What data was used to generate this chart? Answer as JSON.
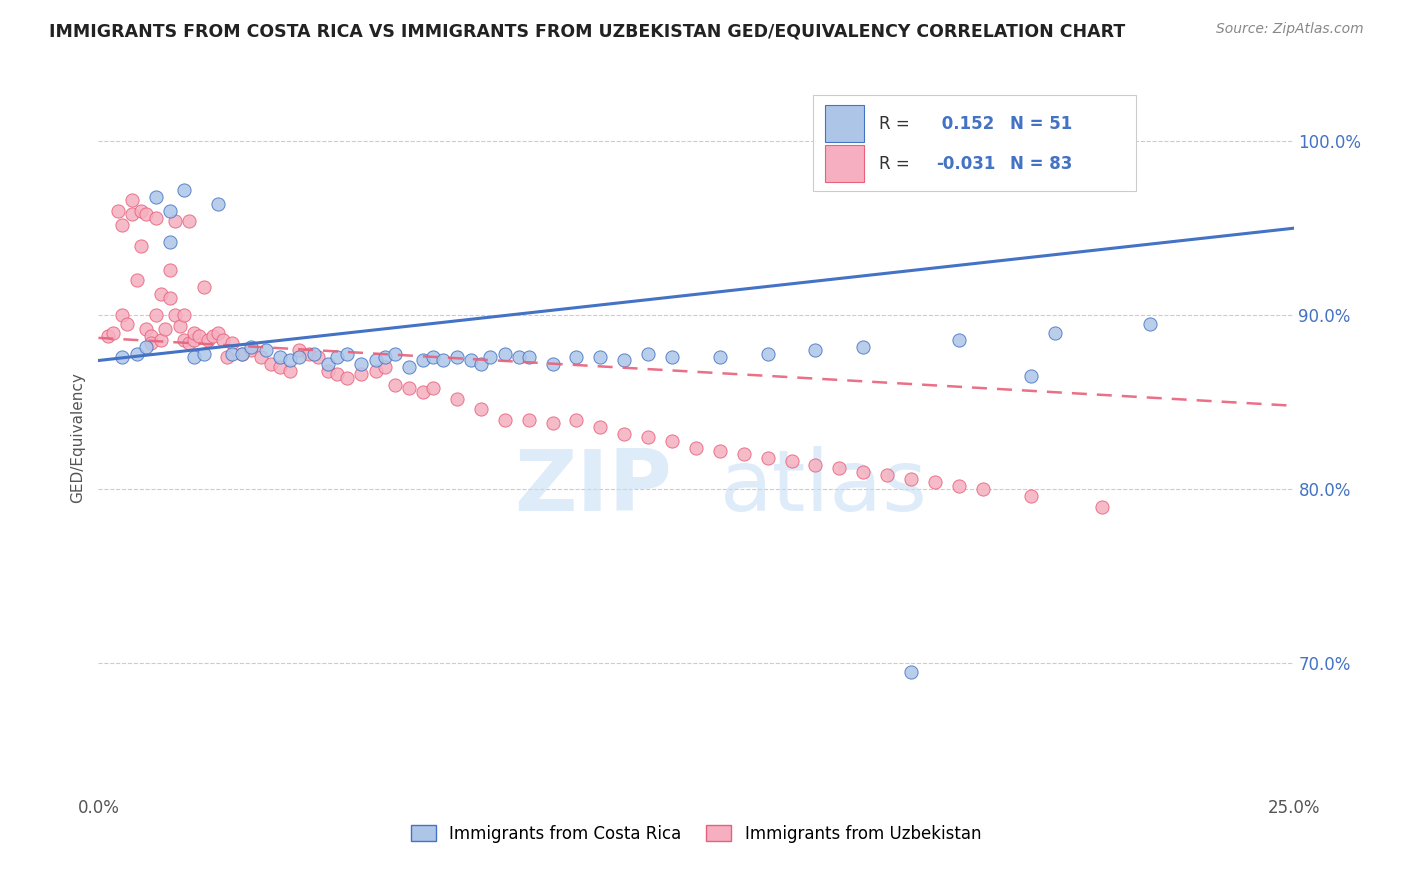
{
  "title": "IMMIGRANTS FROM COSTA RICA VS IMMIGRANTS FROM UZBEKISTAN GED/EQUIVALENCY CORRELATION CHART",
  "source": "Source: ZipAtlas.com",
  "ylabel": "GED/Equivalency",
  "xlim": [
    0.0,
    0.25
  ],
  "ylim": [
    0.625,
    1.035
  ],
  "legend1_label": "Immigrants from Costa Rica",
  "legend2_label": "Immigrants from Uzbekistan",
  "r1": 0.152,
  "n1": 51,
  "r2": -0.031,
  "n2": 83,
  "color_blue": "#adc6e8",
  "color_pink": "#f5afc0",
  "color_blue_line": "#4472c4",
  "color_pink_line": "#e8607a",
  "watermark": "ZIPatlas",
  "blue_scatter_x": [
    0.005,
    0.008,
    0.01,
    0.012,
    0.015,
    0.015,
    0.018,
    0.02,
    0.022,
    0.025,
    0.028,
    0.03,
    0.032,
    0.035,
    0.038,
    0.04,
    0.042,
    0.045,
    0.048,
    0.05,
    0.052,
    0.055,
    0.058,
    0.06,
    0.062,
    0.065,
    0.068,
    0.07,
    0.072,
    0.075,
    0.078,
    0.08,
    0.082,
    0.085,
    0.088,
    0.09,
    0.095,
    0.1,
    0.105,
    0.11,
    0.115,
    0.12,
    0.13,
    0.14,
    0.15,
    0.16,
    0.18,
    0.2,
    0.22,
    0.195,
    0.17
  ],
  "blue_scatter_y": [
    0.876,
    0.878,
    0.882,
    0.968,
    0.96,
    0.942,
    0.972,
    0.876,
    0.878,
    0.964,
    0.878,
    0.878,
    0.882,
    0.88,
    0.876,
    0.874,
    0.876,
    0.878,
    0.872,
    0.876,
    0.878,
    0.872,
    0.874,
    0.876,
    0.878,
    0.87,
    0.874,
    0.876,
    0.874,
    0.876,
    0.874,
    0.872,
    0.876,
    0.878,
    0.876,
    0.876,
    0.872,
    0.876,
    0.876,
    0.874,
    0.878,
    0.876,
    0.876,
    0.878,
    0.88,
    0.882,
    0.886,
    0.89,
    0.895,
    0.865,
    0.695
  ],
  "pink_scatter_x": [
    0.002,
    0.003,
    0.004,
    0.005,
    0.005,
    0.006,
    0.007,
    0.007,
    0.008,
    0.009,
    0.009,
    0.01,
    0.01,
    0.011,
    0.011,
    0.012,
    0.012,
    0.013,
    0.013,
    0.014,
    0.015,
    0.015,
    0.016,
    0.016,
    0.017,
    0.018,
    0.018,
    0.019,
    0.019,
    0.02,
    0.02,
    0.021,
    0.022,
    0.023,
    0.024,
    0.025,
    0.026,
    0.027,
    0.028,
    0.03,
    0.032,
    0.034,
    0.036,
    0.038,
    0.04,
    0.042,
    0.044,
    0.046,
    0.048,
    0.05,
    0.052,
    0.055,
    0.058,
    0.06,
    0.062,
    0.065,
    0.068,
    0.07,
    0.075,
    0.08,
    0.085,
    0.09,
    0.095,
    0.1,
    0.105,
    0.11,
    0.115,
    0.12,
    0.125,
    0.13,
    0.135,
    0.14,
    0.145,
    0.15,
    0.155,
    0.16,
    0.165,
    0.17,
    0.175,
    0.18,
    0.185,
    0.195,
    0.21
  ],
  "pink_scatter_y": [
    0.888,
    0.89,
    0.96,
    0.952,
    0.9,
    0.895,
    0.966,
    0.958,
    0.92,
    0.94,
    0.96,
    0.958,
    0.892,
    0.888,
    0.884,
    0.956,
    0.9,
    0.912,
    0.886,
    0.892,
    0.926,
    0.91,
    0.9,
    0.954,
    0.894,
    0.886,
    0.9,
    0.954,
    0.884,
    0.886,
    0.89,
    0.888,
    0.916,
    0.886,
    0.888,
    0.89,
    0.886,
    0.876,
    0.884,
    0.878,
    0.88,
    0.876,
    0.872,
    0.87,
    0.868,
    0.88,
    0.878,
    0.876,
    0.868,
    0.866,
    0.864,
    0.866,
    0.868,
    0.87,
    0.86,
    0.858,
    0.856,
    0.858,
    0.852,
    0.846,
    0.84,
    0.84,
    0.838,
    0.84,
    0.836,
    0.832,
    0.83,
    0.828,
    0.824,
    0.822,
    0.82,
    0.818,
    0.816,
    0.814,
    0.812,
    0.81,
    0.808,
    0.806,
    0.804,
    0.802,
    0.8,
    0.796,
    0.79
  ]
}
